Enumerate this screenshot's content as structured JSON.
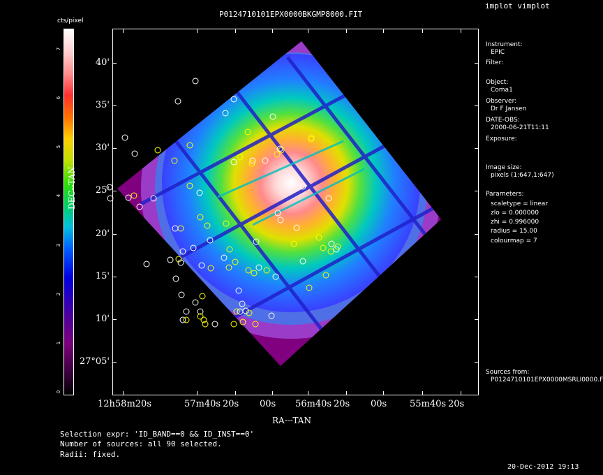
{
  "header": {
    "file_title": "P0124710101EPX0000BKGMP8000.FIT",
    "app_title": "implot vimplot"
  },
  "colorbar": {
    "unit_label": "cts/pixel",
    "tick_labels": [
      "0",
      "1",
      "2",
      "3",
      "4",
      "5",
      "6",
      "7"
    ]
  },
  "axes": {
    "y_label": "DEC--TAN",
    "x_label": "RA---TAN",
    "y_ticks": [
      "40'",
      "35'",
      "30'",
      "25'",
      "20'",
      "15'",
      "10'",
      "27°05'"
    ],
    "x_ticks": [
      "12h58m20s",
      "57m40s",
      "20s",
      "00s",
      "56m40s",
      "20s",
      "00s",
      "55m40s",
      "20s"
    ]
  },
  "info_panel": {
    "instrument_label": "Instrument:",
    "instrument_value": "EPIC",
    "filter_label": "Filter:",
    "object_label": "Object:",
    "object_value": "Coma1",
    "observer_label": "Observer:",
    "observer_value": "Dr F Jansen",
    "date_label": "DATE-OBS:",
    "date_value": "2000-06-21T11:11",
    "exposure_label": "Exposure:",
    "image_size_label": "Image size:",
    "image_size_value": "pixels (1:647,1:647)",
    "parameters_label": "Parameters:",
    "param_scaletype": "scaletype = linear",
    "param_zlo": "zlo = 0.000000",
    "param_zhi": "zhi = 0.996000",
    "param_radius": "radius = 15.00",
    "param_colourmap": "colourmap = 7",
    "sources_from_label": "Sources from:",
    "sources_from_value": "P0124710101EPX0000MSRLI0000.F"
  },
  "footer": {
    "selection_expr": "Selection expr: 'ID_BAND==0 && ID_INST==0'",
    "num_sources": "Number of sources: all 90 selected.",
    "radii": "Radii: fixed.",
    "timestamp": "20-Dec-2012 19:13"
  },
  "colors": {
    "background": "#000000",
    "frame": "#ffffff",
    "source_white": "#ffffff",
    "source_yellow": "#ffff00",
    "detector_outer": "#800080"
  }
}
